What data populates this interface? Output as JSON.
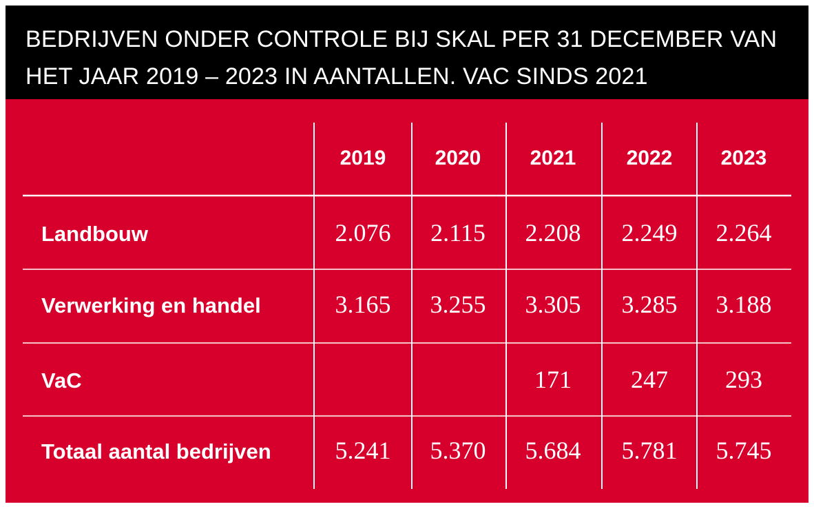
{
  "title": {
    "line1": "BEDRIJVEN ONDER CONTROLE BIJ SKAL PER 31 DECEMBER VAN",
    "line2": "HET JAAR 2019 – 2023 IN AANTALLEN. VAC SINDS 2021"
  },
  "colors": {
    "panel": "#d7002c",
    "title_bar": "#000000",
    "text": "#ffffff",
    "rules": "#ffffff"
  },
  "chart_data": {
    "type": "table",
    "title": "BEDRIJVEN ONDER CONTROLE BIJ SKAL PER 31 DECEMBER VAN HET JAAR 2019 – 2023 IN AANTALLEN. VAC SINDS 2021",
    "columns": [
      "2019",
      "2020",
      "2021",
      "2022",
      "2023"
    ],
    "rows": [
      {
        "label": "Landbouw",
        "cells": [
          "2.076",
          "2.115",
          "2.208",
          "2.249",
          "2.264"
        ]
      },
      {
        "label": "Verwerking en handel",
        "cells": [
          "3.165",
          "3.255",
          "3.305",
          "3.285",
          "3.188"
        ]
      },
      {
        "label": "VaC",
        "cells": [
          "",
          "",
          "171",
          "247",
          "293"
        ]
      },
      {
        "label": "Totaal aantal bedrijven",
        "cells": [
          "5.241",
          "5.370",
          "5.684",
          "5.781",
          "5.745"
        ]
      }
    ]
  }
}
